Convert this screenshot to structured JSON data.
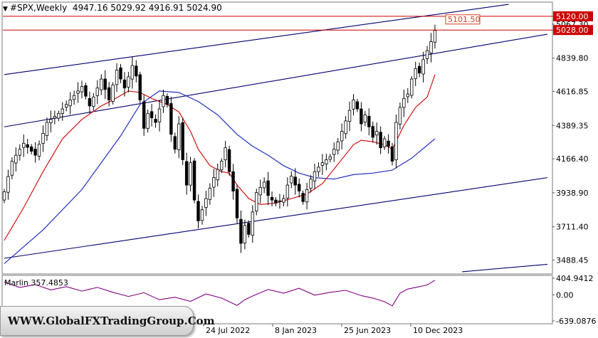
{
  "header": {
    "marker_glyph": "▼",
    "symbol": "#SPX,Weekly",
    "ohlc": "4947.16 5029.92 4916.91 5024.90"
  },
  "indicator": {
    "label": "Marlin 357.4853",
    "color": "#800080"
  },
  "watermark": {
    "text": "WWW.GlobalFXTradingGroup.Com"
  },
  "colors": {
    "candles": "#000000",
    "ma_fast": "#cc0000",
    "ma_slow": "#1f2fbf",
    "channel": "#00006e",
    "level": "#cc0000",
    "background": "#ffffff"
  },
  "chart_data": {
    "type": "candlestick",
    "symbol": "#SPX",
    "timeframe": "Weekly",
    "y_range": [
      3400,
      5210
    ],
    "y_ticks": [
      "5120.00",
      "5067.30",
      "5028.00",
      "4839.80",
      "4616.85",
      "4389.35",
      "4166.40",
      "3938.90",
      "3711.40",
      "3488.45"
    ],
    "x_ticks": [
      "24 Jul 2022",
      "8 Jan 2023",
      "25 Jun 2023",
      "10 Dec 2023"
    ],
    "horizontal_levels": [
      {
        "label": "5120.00",
        "value": 5120.0
      },
      {
        "label": "5028.00",
        "value": 5028.0
      }
    ],
    "annotation": {
      "label": "5101.50",
      "value": 5101.5
    },
    "close_path": [
      [
        0,
        3945
      ],
      [
        2,
        4150
      ],
      [
        5,
        4270
      ],
      [
        8,
        4190
      ],
      [
        11,
        4410
      ],
      [
        14,
        4470
      ],
      [
        17,
        4560
      ],
      [
        20,
        4650
      ],
      [
        22,
        4520
      ],
      [
        25,
        4700
      ],
      [
        27,
        4560
      ],
      [
        29,
        4760
      ],
      [
        31,
        4640
      ],
      [
        33,
        4790
      ],
      [
        34,
        4720
      ],
      [
        35,
        4560
      ],
      [
        36,
        4370
      ],
      [
        37,
        4470
      ],
      [
        39,
        4410
      ],
      [
        41,
        4590
      ],
      [
        42,
        4530
      ],
      [
        43,
        4330
      ],
      [
        44,
        4230
      ],
      [
        45,
        4400
      ],
      [
        46,
        4160
      ],
      [
        47,
        3990
      ],
      [
        48,
        4140
      ],
      [
        49,
        3890
      ],
      [
        50,
        3750
      ],
      [
        52,
        3900
      ],
      [
        54,
        4040
      ],
      [
        56,
        4150
      ],
      [
        57,
        4240
      ],
      [
        58,
        4080
      ],
      [
        59,
        3950
      ],
      [
        60,
        3770
      ],
      [
        61,
        3600
      ],
      [
        62,
        3720
      ],
      [
        63,
        3660
      ],
      [
        64,
        3810
      ],
      [
        65,
        3940
      ],
      [
        67,
        4010
      ],
      [
        68,
        3920
      ],
      [
        69,
        3890
      ],
      [
        70,
        3870
      ],
      [
        72,
        3900
      ],
      [
        73,
        3990
      ],
      [
        74,
        4050
      ],
      [
        75,
        3990
      ],
      [
        76,
        3950
      ],
      [
        77,
        3880
      ],
      [
        78,
        3960
      ],
      [
        79,
        4030
      ],
      [
        80,
        4080
      ],
      [
        82,
        4140
      ],
      [
        84,
        4180
      ],
      [
        86,
        4280
      ],
      [
        88,
        4420
      ],
      [
        90,
        4560
      ],
      [
        91,
        4500
      ],
      [
        92,
        4400
      ],
      [
        93,
        4460
      ],
      [
        94,
        4380
      ],
      [
        95,
        4310
      ],
      [
        96,
        4350
      ],
      [
        97,
        4240
      ],
      [
        98,
        4300
      ],
      [
        99,
        4250
      ],
      [
        100,
        4150
      ],
      [
        101,
        4410
      ],
      [
        102,
        4510
      ],
      [
        103,
        4570
      ],
      [
        104,
        4600
      ],
      [
        105,
        4700
      ],
      [
        106,
        4770
      ],
      [
        107,
        4740
      ],
      [
        108,
        4830
      ],
      [
        109,
        4890
      ],
      [
        110,
        4950
      ],
      [
        111,
        5025
      ]
    ],
    "ma_fast_path": [
      [
        0,
        3620
      ],
      [
        5,
        3840
      ],
      [
        10,
        4080
      ],
      [
        15,
        4300
      ],
      [
        20,
        4430
      ],
      [
        25,
        4520
      ],
      [
        28,
        4560
      ],
      [
        32,
        4620
      ],
      [
        35,
        4610
      ],
      [
        38,
        4570
      ],
      [
        42,
        4530
      ],
      [
        45,
        4480
      ],
      [
        48,
        4350
      ],
      [
        50,
        4230
      ],
      [
        53,
        4120
      ],
      [
        56,
        4080
      ],
      [
        58,
        4070
      ],
      [
        60,
        3990
      ],
      [
        63,
        3900
      ],
      [
        66,
        3860
      ],
      [
        70,
        3870
      ],
      [
        74,
        3900
      ],
      [
        78,
        3930
      ],
      [
        82,
        4000
      ],
      [
        86,
        4130
      ],
      [
        90,
        4260
      ],
      [
        92,
        4290
      ],
      [
        95,
        4280
      ],
      [
        98,
        4260
      ],
      [
        100,
        4230
      ],
      [
        103,
        4390
      ],
      [
        106,
        4510
      ],
      [
        109,
        4580
      ],
      [
        111,
        4730
      ]
    ],
    "ma_slow_path": [
      [
        0,
        3465
      ],
      [
        10,
        3690
      ],
      [
        20,
        3960
      ],
      [
        30,
        4320
      ],
      [
        35,
        4530
      ],
      [
        40,
        4620
      ],
      [
        45,
        4610
      ],
      [
        50,
        4550
      ],
      [
        55,
        4460
      ],
      [
        60,
        4330
      ],
      [
        64,
        4250
      ],
      [
        68,
        4190
      ],
      [
        72,
        4120
      ],
      [
        76,
        4070
      ],
      [
        80,
        4040
      ],
      [
        85,
        4030
      ],
      [
        90,
        4060
      ],
      [
        95,
        4070
      ],
      [
        100,
        4090
      ],
      [
        105,
        4170
      ],
      [
        111,
        4300
      ]
    ],
    "channel_lines": [
      {
        "from": [
          0,
          4730
        ],
        "to": [
          130,
          5200
        ]
      },
      {
        "from": [
          0,
          4380
        ],
        "to": [
          140,
          5000
        ]
      },
      {
        "from": [
          0,
          3500
        ],
        "to": [
          140,
          4040
        ]
      },
      {
        "from": [
          118,
          3410
        ],
        "to": [
          140,
          3460
        ]
      }
    ],
    "indicator_range": [
      -639.0876,
      404.9412
    ],
    "indicator_ticks": [
      "404.9412",
      "0.00",
      "-639.0876"
    ],
    "indicator_path": [
      [
        0,
        310
      ],
      [
        4,
        180
      ],
      [
        8,
        250
      ],
      [
        12,
        120
      ],
      [
        16,
        200
      ],
      [
        20,
        90
      ],
      [
        24,
        180
      ],
      [
        28,
        60
      ],
      [
        32,
        -40
      ],
      [
        36,
        50
      ],
      [
        40,
        -120
      ],
      [
        44,
        -60
      ],
      [
        48,
        -160
      ],
      [
        52,
        20
      ],
      [
        56,
        -80
      ],
      [
        60,
        -260
      ],
      [
        62,
        -120
      ],
      [
        64,
        -30
      ],
      [
        68,
        130
      ],
      [
        72,
        40
      ],
      [
        76,
        160
      ],
      [
        80,
        -10
      ],
      [
        84,
        60
      ],
      [
        88,
        110
      ],
      [
        92,
        -20
      ],
      [
        95,
        -80
      ],
      [
        98,
        -170
      ],
      [
        100,
        -270
      ],
      [
        102,
        40
      ],
      [
        104,
        140
      ],
      [
        106,
        180
      ],
      [
        109,
        240
      ],
      [
        111,
        357
      ]
    ]
  }
}
